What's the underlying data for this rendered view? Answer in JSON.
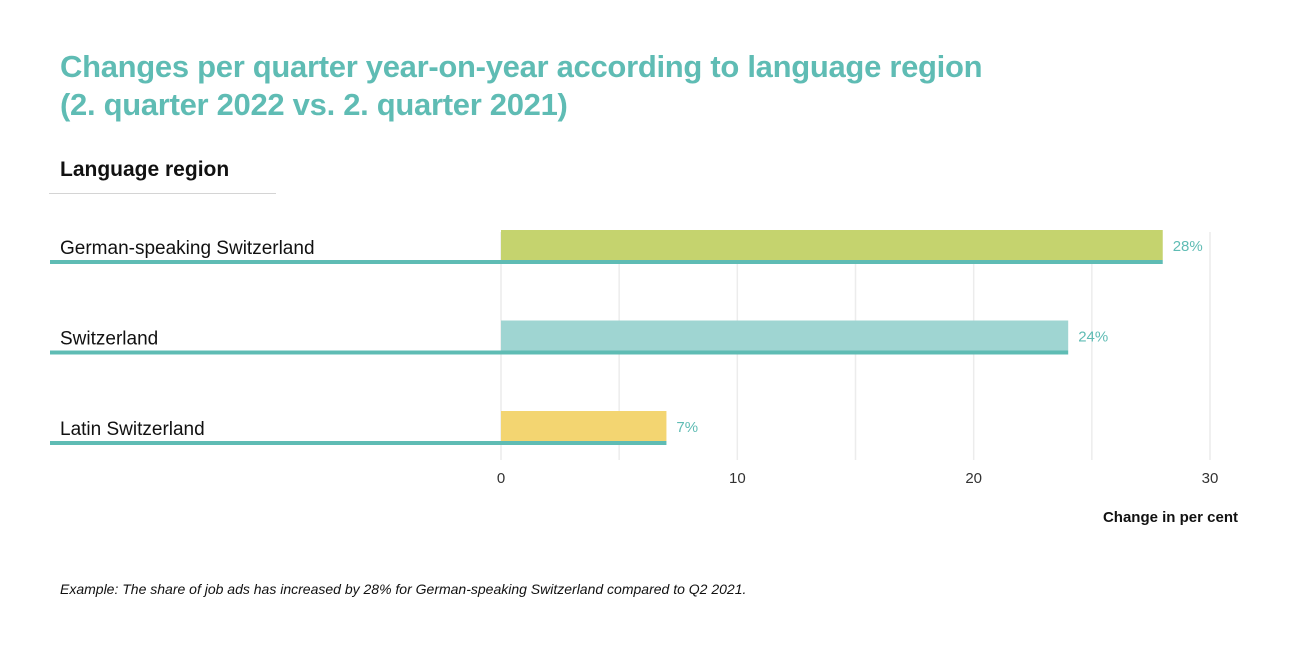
{
  "chart_data": {
    "type": "bar",
    "orientation": "horizontal",
    "title": "Changes per quarter year-on-year according to language region",
    "subtitle": "(2. quarter 2022 vs. 2. quarter 2021)",
    "category_header": "Language region",
    "categories": [
      "German-speaking Switzerland",
      "Switzerland",
      "Latin Switzerland"
    ],
    "values": [
      28,
      24,
      7
    ],
    "value_labels": [
      "28%",
      "24%",
      "7%"
    ],
    "bar_colors": [
      "#c5d36e",
      "#9fd5d2",
      "#f3d571"
    ],
    "underline_color": "#5fbcb4",
    "xlabel": "Change in per cent",
    "ylabel": "",
    "xlim": [
      0,
      30
    ],
    "ticks": [
      0,
      10,
      20,
      30
    ],
    "minor_gridlines": [
      5,
      15,
      25
    ],
    "grid": true,
    "legend": "none"
  },
  "footnote": "Example: The share of job ads has increased by 28% for German-speaking Switzerland compared to Q2 2021."
}
